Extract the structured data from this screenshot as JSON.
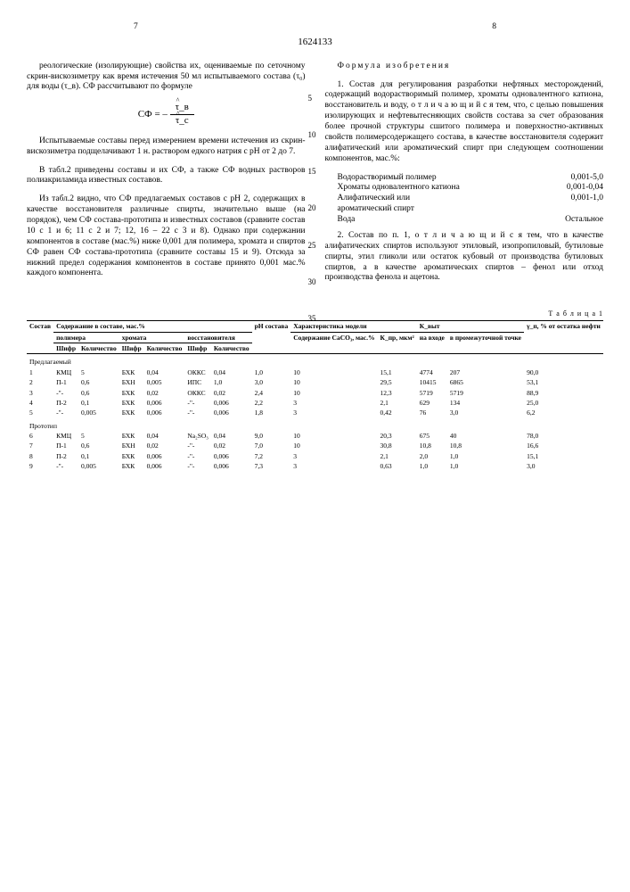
{
  "page_left": "7",
  "patent_number": "1624133",
  "page_right": "8",
  "line_numbers": [
    "5",
    "10",
    "15",
    "20",
    "25",
    "30",
    "35"
  ],
  "left": {
    "p1": "реологические (изолирующие) свойства их, оцениваемые по сеточному скрин-вискозиметру как время истечения 50 мл испытываемого состава (τ₀) для воды (τ_в). СФ рассчитывают по формуле",
    "formula_sf": "СФ =",
    "formula_top": "τ_в",
    "formula_bot": "τ_с",
    "p2": "Испытываемые составы перед измерением времени истечения из скрин-вискозиметра подщелачивают 1 н. раствором едкого натрия с pH от 2 до 7.",
    "p3": "В табл.2 приведены составы и их СФ, а также СФ водных растворов полиакриламида известных составов.",
    "p4": "Из табл.2 видно, что СФ предлагаемых составов с pH 2, содержащих в качестве восстановителя различные спирты, значительно выше (на порядок), чем СФ состава-прототипа и известных составов (сравните состав 10 с 1 и 6; 11 с 2 и 7; 12, 16 – 22 с 3 и 8). Однако при содержании компонентов в составе (мас.%) ниже 0,001 для полимера, хромата и спиртов СФ равен СФ состава-прототипа (сравните составы 15 и 9). Отсюда за нижний предел содержания компонентов в составе принято 0,001 мас.% каждого компонента."
  },
  "right": {
    "claims_title": "Формула изобретения",
    "p1": "1. Состав для регулирования разработки нефтяных месторождений, содержащий водорастворимый полимер, хроматы одновалентного катиона, восстановитель и воду, о т л и ч а ю щ и й с я  тем, что, с целью повышения изолирующих и нефтевытесняющих свойств состава за счет образования более прочной структуры сшитого полимера и поверхностно-активных свойств полимерсодержащего состава, в качестве восстановителя содержит алифатический или ароматический спирт при следующем соотношении компонентов, мас.%:",
    "comp": [
      {
        "label": "Водорастворимый полимер",
        "value": "0,001-5,0"
      },
      {
        "label": "Хроматы одновалентного катиона",
        "value": "0,001-0,04"
      },
      {
        "label": "Алифатический или ароматический спирт",
        "value": "0,001-1,0"
      },
      {
        "label": "Вода",
        "value": "Остальное"
      }
    ],
    "p2": "2. Состав по п. 1, о т л и ч а ю щ и й с я  тем, что в качестве алифатических спиртов используют этиловый, изопропиловый, бутиловые спирты, этил гликоли или остаток кубовый от производства бутиловых спиртов, а в качестве ароматических спиртов – фенол или отход производства фенола и ацетона."
  },
  "table": {
    "title": "Т а б л и ц а  1",
    "head_main": [
      "Состав",
      "Содержание в составе, мас.%",
      "",
      "",
      "",
      "",
      "pH состава",
      "Характеристика модели",
      "",
      "К_выт",
      "",
      "γ_п, % от остатка нефти"
    ],
    "head_sub1": [
      "",
      "полимера",
      "",
      "хромата",
      "",
      "восстановителя",
      "",
      "",
      "Содержание CaCO₃, мас.%",
      "К_пр, мкм²",
      "на входе",
      "в промежуточной точке",
      ""
    ],
    "head_sub2": [
      "",
      "Шифр",
      "Количество",
      "Шифр",
      "Количество",
      "Шифр",
      "Количество",
      "",
      "",
      "",
      "",
      "",
      ""
    ],
    "section1": "Предлагаемый",
    "rows1": [
      [
        "1",
        "КМЦ",
        "5",
        "БХК",
        "0,04",
        "ОККС",
        "0,04",
        "1,0",
        "10",
        "15,1",
        "4774",
        "207",
        "90,0"
      ],
      [
        "2",
        "П-1",
        "0,6",
        "БХН",
        "0,005",
        "ИПС",
        "1,0",
        "3,0",
        "10",
        "29,5",
        "10415",
        "6865",
        "53,1"
      ],
      [
        "3",
        "-\"-",
        "0,6",
        "БХК",
        "0,02",
        "ОККС",
        "0,02",
        "2,4",
        "10",
        "12,3",
        "5719",
        "5719",
        "88,9"
      ],
      [
        "4",
        "П-2",
        "0,1",
        "БХК",
        "0,006",
        "-\"-",
        "0,006",
        "2,2",
        "3",
        "2,1",
        "629",
        "134",
        "25,0"
      ],
      [
        "5",
        "-\"-",
        "0,005",
        "БХК",
        "0,006",
        "-\"-",
        "0,006",
        "1,8",
        "3",
        "0,42",
        "76",
        "3,0",
        "6,2"
      ]
    ],
    "section2": "Прототип",
    "rows2": [
      [
        "6",
        "КМЦ",
        "5",
        "БХК",
        "0,04",
        "Na₂SO₃",
        "0,04",
        "9,0",
        "10",
        "20,3",
        "675",
        "40",
        "78,0"
      ],
      [
        "7",
        "П-1",
        "0,6",
        "БХН",
        "0,02",
        "-\"-",
        "0,02",
        "7,0",
        "10",
        "30,8",
        "10,8",
        "10,8",
        "16,6"
      ],
      [
        "8",
        "П-2",
        "0,1",
        "БХК",
        "0,006",
        "-\"-",
        "0,006",
        "7,2",
        "3",
        "2,1",
        "2,0",
        "1,0",
        "15,1"
      ],
      [
        "9",
        "-\"-",
        "0,005",
        "БХК",
        "0,006",
        "-\"-",
        "0,006",
        "7,3",
        "3",
        "0,63",
        "1,0",
        "1,0",
        "3,0"
      ]
    ]
  }
}
